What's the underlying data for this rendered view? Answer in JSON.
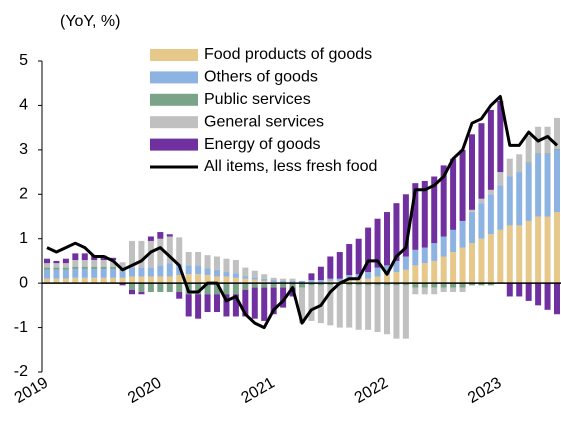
{
  "chart_data": {
    "type": "bar",
    "stacked": true,
    "title": "(YoY, %)",
    "categories": [
      "2019",
      null,
      null,
      null,
      null,
      null,
      null,
      null,
      null,
      null,
      null,
      null,
      "2020",
      null,
      null,
      null,
      null,
      null,
      null,
      null,
      null,
      null,
      null,
      null,
      "2021",
      null,
      null,
      null,
      null,
      null,
      null,
      null,
      null,
      null,
      null,
      null,
      "2022",
      null,
      null,
      null,
      null,
      null,
      null,
      null,
      null,
      null,
      null,
      null,
      "2023",
      null,
      null,
      null,
      null,
      null,
      null
    ],
    "ylim": [
      -2,
      5
    ],
    "yticks": [
      -2,
      -1,
      0,
      1,
      2,
      3,
      4,
      5
    ],
    "series": [
      {
        "name": "Food products of goods",
        "color": "#e6c88a",
        "values": [
          0.1,
          0.1,
          0.1,
          0.12,
          0.12,
          0.12,
          0.12,
          0.12,
          0.12,
          0.15,
          0.15,
          0.15,
          0.15,
          0.15,
          0.18,
          0.2,
          0.2,
          0.18,
          0.15,
          0.15,
          0.12,
          0.1,
          0.08,
          0.05,
          0.02,
          0,
          0,
          0,
          0.02,
          0.02,
          0.05,
          0.05,
          0.08,
          0.1,
          0.1,
          0.15,
          0.2,
          0.25,
          0.3,
          0.4,
          0.45,
          0.5,
          0.6,
          0.7,
          0.8,
          0.9,
          1.0,
          1.1,
          1.2,
          1.3,
          1.3,
          1.4,
          1.5,
          1.5,
          1.6
        ]
      },
      {
        "name": "Others of goods",
        "color": "#8db3e2",
        "values": [
          0.2,
          0.2,
          0.2,
          0.2,
          0.2,
          0.2,
          0.2,
          0.2,
          0.15,
          0.2,
          0.2,
          0.2,
          0.25,
          0.3,
          0.25,
          0.2,
          0.2,
          0.15,
          0.15,
          0.1,
          0.1,
          0.05,
          0.05,
          0.05,
          0.05,
          0.05,
          0.05,
          0.05,
          0.05,
          0.05,
          0.05,
          0.05,
          0.1,
          0.1,
          0.15,
          0.2,
          0.2,
          0.25,
          0.3,
          0.35,
          0.35,
          0.4,
          0.45,
          0.5,
          0.6,
          0.7,
          0.8,
          0.9,
          1.0,
          1.1,
          1.2,
          1.3,
          1.4,
          1.4,
          1.4
        ]
      },
      {
        "name": "Public services",
        "color": "#7aa387",
        "values": [
          0.05,
          0.05,
          0.05,
          0.05,
          0.05,
          0.05,
          0.05,
          0.05,
          0.05,
          -0.15,
          -0.2,
          -0.2,
          -0.2,
          -0.2,
          -0.2,
          -0.25,
          -0.25,
          -0.25,
          -0.25,
          -0.25,
          -0.25,
          -0.15,
          -0.1,
          -0.1,
          -0.1,
          -0.1,
          -0.1,
          -0.1,
          -0.05,
          -0.05,
          -0.05,
          -0.05,
          -0.05,
          -0.05,
          -0.05,
          -0.05,
          -0.05,
          -0.05,
          -0.05,
          -0.1,
          -0.1,
          -0.1,
          -0.1,
          -0.1,
          -0.1,
          -0.05,
          -0.05,
          -0.05,
          0,
          0,
          0,
          0.02,
          0.02,
          0.02,
          0.02
        ]
      },
      {
        "name": "General services",
        "color": "#c0c0c0",
        "values": [
          0.1,
          0.1,
          0.1,
          0.15,
          0.15,
          0.15,
          0.15,
          0.15,
          0.15,
          0.6,
          0.6,
          0.6,
          0.6,
          0.6,
          0.6,
          0.3,
          0.3,
          0.3,
          0.3,
          0.3,
          0.3,
          0.2,
          0.15,
          0.1,
          0.05,
          0.05,
          0.05,
          -0.8,
          -0.8,
          -0.85,
          -0.9,
          -0.95,
          -0.95,
          -1.0,
          -1.0,
          -1.05,
          -1.1,
          -1.2,
          -1.2,
          -0.15,
          -0.15,
          -0.15,
          -0.1,
          -0.1,
          -0.1,
          0.05,
          0.1,
          0.1,
          0.3,
          0.4,
          0.4,
          0.6,
          0.6,
          0.6,
          0.7
        ]
      },
      {
        "name": "Energy of goods",
        "color": "#7030a0",
        "values": [
          0.1,
          0.05,
          0.1,
          0.15,
          0.15,
          0.1,
          0.1,
          0.05,
          -0.05,
          -0.1,
          -0.05,
          0.1,
          0.15,
          0.05,
          -0.15,
          -0.5,
          -0.55,
          -0.4,
          -0.4,
          -0.5,
          -0.5,
          -0.6,
          -0.7,
          -0.75,
          -0.6,
          -0.45,
          -0.2,
          0,
          0.15,
          0.3,
          0.5,
          0.6,
          0.7,
          0.8,
          1.0,
          1.1,
          1.2,
          1.3,
          1.4,
          1.5,
          1.5,
          1.5,
          1.6,
          1.6,
          1.6,
          1.7,
          1.7,
          1.8,
          1.6,
          -0.3,
          -0.3,
          -0.4,
          -0.5,
          -0.6,
          -0.7
        ]
      },
      {
        "name": "All items, less fresh food",
        "color": "#000000",
        "type": "line",
        "values": [
          0.8,
          0.7,
          0.8,
          0.9,
          0.8,
          0.6,
          0.6,
          0.5,
          0.3,
          0.4,
          0.5,
          0.7,
          0.8,
          0.6,
          0.4,
          -0.2,
          -0.2,
          0.0,
          0.0,
          -0.4,
          -0.3,
          -0.7,
          -0.9,
          -1.0,
          -0.6,
          -0.4,
          -0.1,
          -0.9,
          -0.6,
          -0.5,
          -0.2,
          0.0,
          0.1,
          0.1,
          0.5,
          0.5,
          0.2,
          0.6,
          0.8,
          2.1,
          2.1,
          2.2,
          2.4,
          2.8,
          3.0,
          3.6,
          3.7,
          4.0,
          4.2,
          3.1,
          3.1,
          3.4,
          3.2,
          3.3,
          3.1
        ]
      }
    ]
  }
}
